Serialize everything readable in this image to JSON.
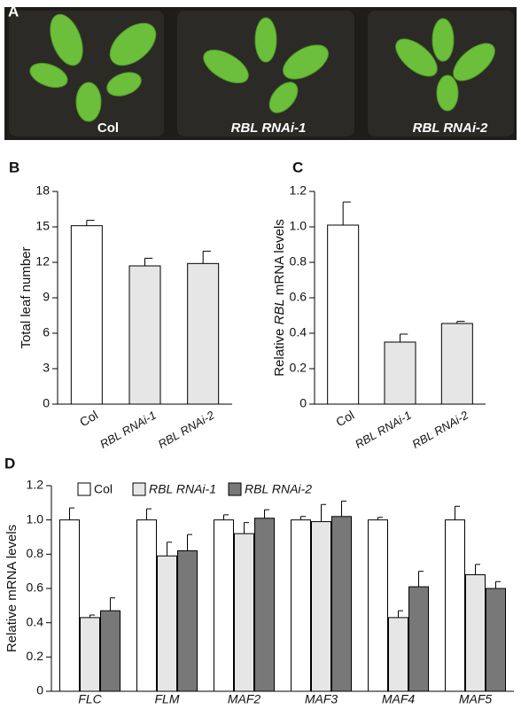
{
  "photo": {
    "panel": "A",
    "labels": [
      "Col",
      "RBL RNAi-1",
      "RBL RNAi-2"
    ]
  },
  "chart_data": [
    {
      "type": "bar",
      "panel": "B",
      "ylabel": "Total leaf number",
      "categories": [
        "Col",
        "RBL RNAi-1",
        "RBL RNAi-2"
      ],
      "values": [
        15.1,
        11.7,
        11.9
      ],
      "errors": [
        0.45,
        0.65,
        1.05
      ],
      "colors": [
        "#ffffff",
        "#e6e6e6",
        "#e6e6e6"
      ],
      "ylim": [
        0,
        18
      ],
      "yticks": [
        0,
        3,
        6,
        9,
        12,
        15,
        18
      ]
    },
    {
      "type": "bar",
      "panel": "C",
      "ylabel": [
        "Relative ",
        "RBL",
        " mRNA levels"
      ],
      "categories": [
        "Col",
        "RBL RNAi-1",
        "RBL RNAi-2"
      ],
      "values": [
        1.01,
        0.35,
        0.455
      ],
      "errors": [
        0.13,
        0.045,
        0.012
      ],
      "colors": [
        "#ffffff",
        "#e6e6e6",
        "#e6e6e6"
      ],
      "ylim": [
        0,
        1.2
      ],
      "yticks": [
        0,
        0.2,
        0.4,
        0.6,
        0.8,
        {
          "value": 1,
          "label": "1.0"
        },
        1.2
      ]
    },
    {
      "type": "grouped-bar",
      "panel": "D",
      "ylabel": "Relative mRNA levels",
      "categories": [
        "FLC",
        "FLM",
        "MAF2",
        "MAF3",
        "MAF4",
        "MAF5"
      ],
      "series": [
        {
          "name": "Col",
          "color": "#ffffff",
          "values": [
            1.0,
            1.0,
            1.0,
            1.0,
            1.0,
            1.0
          ],
          "errors": [
            0.07,
            0.065,
            0.03,
            0.02,
            0.015,
            0.08
          ]
        },
        {
          "name": "RBL RNAi-1",
          "color": "#e6e6e6",
          "values": [
            0.43,
            0.79,
            0.92,
            0.99,
            0.43,
            0.68
          ],
          "errors": [
            0.015,
            0.08,
            0.065,
            0.1,
            0.04,
            0.06
          ]
        },
        {
          "name": "RBL RNAi-2",
          "color": "#787878",
          "values": [
            0.47,
            0.82,
            1.01,
            1.02,
            0.61,
            0.6
          ],
          "errors": [
            0.075,
            0.095,
            0.05,
            0.09,
            0.09,
            0.04
          ]
        }
      ],
      "ylim": [
        0,
        1.2
      ],
      "yticks": [
        0,
        0.2,
        0.4,
        0.6,
        0.8,
        {
          "value": 1,
          "label": "1.0"
        },
        1.2
      ]
    }
  ]
}
